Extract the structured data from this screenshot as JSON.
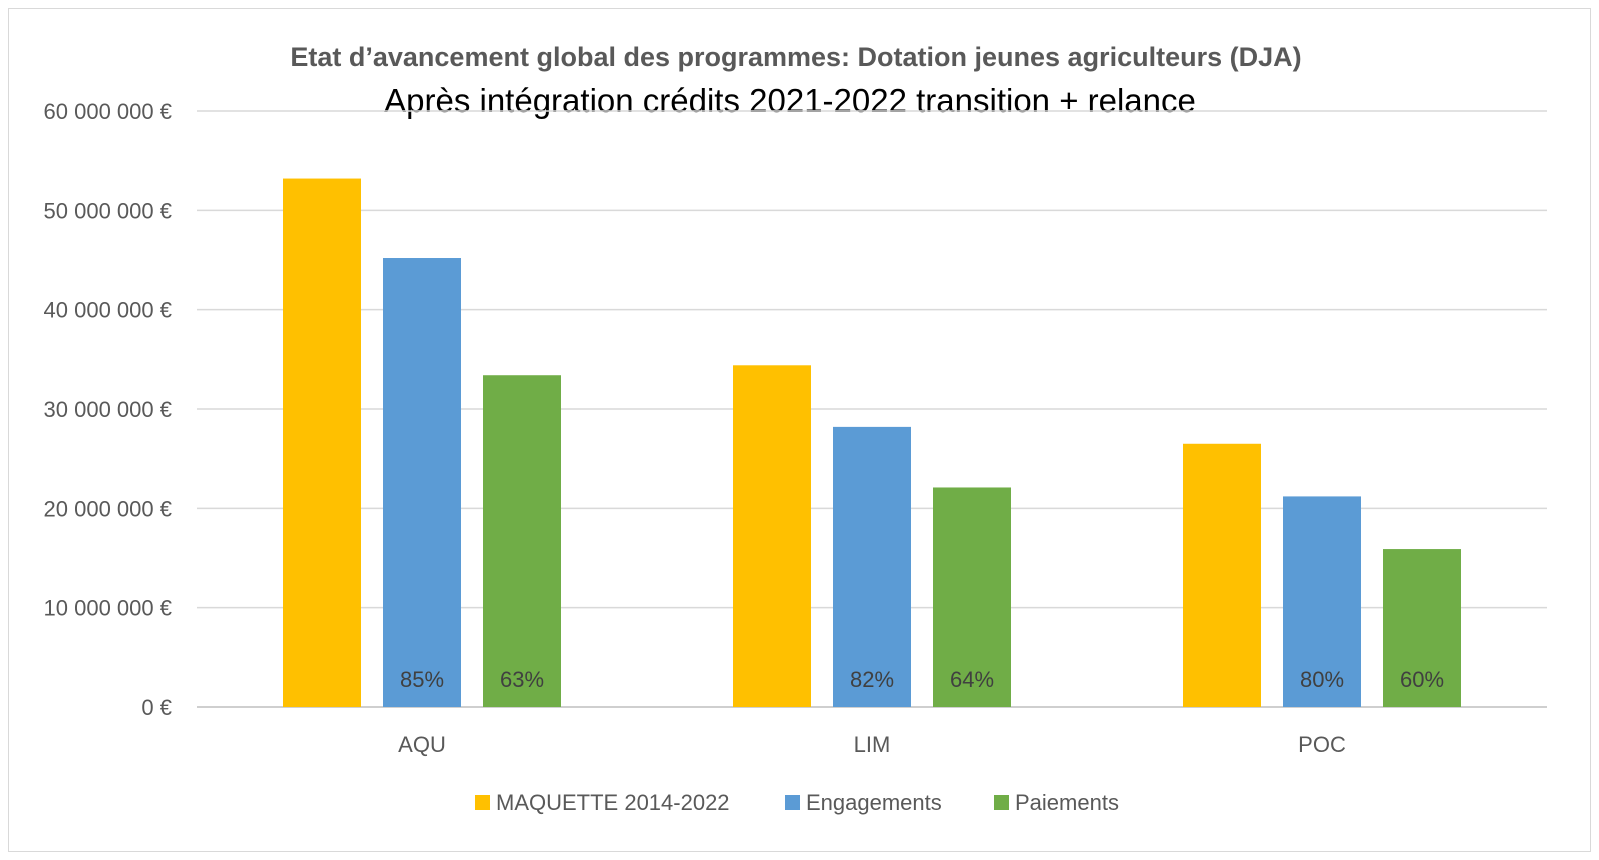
{
  "chart_data": {
    "type": "bar",
    "title": "Etat d’avancement global des programmes: Dotation jeunes agriculteurs (DJA)",
    "subtitle": "Après intégration crédits 2021-2022 transition + relance",
    "categories": [
      "AQU",
      "LIM",
      "POC"
    ],
    "series": [
      {
        "name": "MAQUETTE 2014-2022",
        "color": "#FFC000",
        "values": [
          53200000,
          34400000,
          26500000
        ],
        "labels": [
          "",
          "",
          ""
        ]
      },
      {
        "name": "Engagements",
        "color": "#5B9BD5",
        "values": [
          45200000,
          28200000,
          21200000
        ],
        "labels": [
          "85%",
          "82%",
          "80%"
        ]
      },
      {
        "name": "Paiements",
        "color": "#70AD47",
        "values": [
          33400000,
          22100000,
          15900000
        ],
        "labels": [
          "63%",
          "64%",
          "60%"
        ]
      }
    ],
    "ylim": [
      0,
      60000000
    ],
    "yticks": [
      0,
      10000000,
      20000000,
      30000000,
      40000000,
      50000000,
      60000000
    ],
    "ytick_labels": [
      "0 €",
      "10 000 000 €",
      "20 000 000 €",
      "30 000 000 €",
      "40 000 000 €",
      "50 000 000 €",
      "60 000 000 €"
    ],
    "xlabel": "",
    "ylabel": "",
    "grid": true,
    "legend_position": "bottom"
  }
}
